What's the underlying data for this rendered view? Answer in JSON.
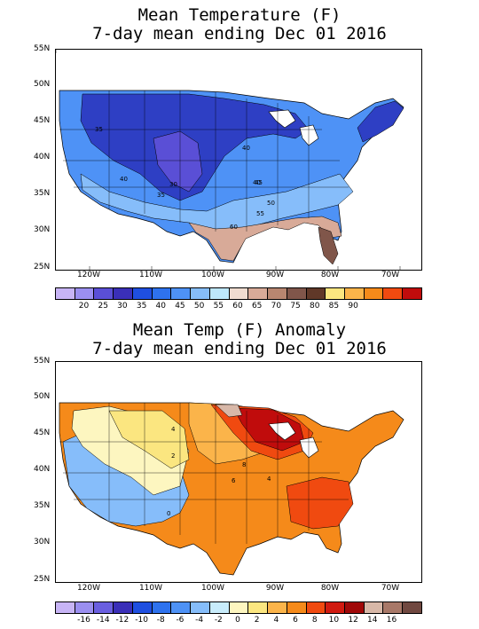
{
  "temperature_map": {
    "title_line1": "Mean Temperature (F)",
    "title_line2": "7-day mean ending Dec 01 2016",
    "lat_labels": [
      "55N",
      "50N",
      "45N",
      "40N",
      "35N",
      "30N",
      "25N"
    ],
    "lon_labels": [
      "120W",
      "110W",
      "100W",
      "90W",
      "80W",
      "70W"
    ],
    "contour_labels": [
      "35",
      "40",
      "40",
      "35",
      "30",
      "40",
      "45",
      "50",
      "55",
      "60"
    ],
    "legend_labels": [
      "20",
      "25",
      "30",
      "35",
      "40",
      "45",
      "50",
      "55",
      "60",
      "65",
      "70",
      "75",
      "80",
      "85",
      "90"
    ],
    "legend_colors": [
      "#c7b4f5",
      "#9b8ff0",
      "#5a4fd6",
      "#3a2fb8",
      "#1f4fe0",
      "#2e72ee",
      "#4e92f6",
      "#86bdfa",
      "#bde7fb",
      "#f0dcd0",
      "#d8aa98",
      "#b88670",
      "#80564a",
      "#603828",
      "#fbe680",
      "#fbb44a",
      "#f58a1a",
      "#f04a10",
      "#c00c0c"
    ]
  },
  "anomaly_map": {
    "title_line1": "Mean Temp (F) Anomaly",
    "title_line2": "7-day mean ending Dec 01 2016",
    "lat_labels": [
      "55N",
      "50N",
      "45N",
      "40N",
      "35N",
      "30N",
      "25N"
    ],
    "lon_labels": [
      "120W",
      "110W",
      "100W",
      "90W",
      "80W",
      "70W"
    ],
    "contour_labels": [
      "4",
      "2",
      "8",
      "6",
      "4",
      "0"
    ],
    "legend_labels": [
      "-16",
      "-14",
      "-12",
      "-10",
      "-8",
      "-6",
      "-4",
      "-2",
      "0",
      "2",
      "4",
      "6",
      "8",
      "10",
      "12",
      "14",
      "16"
    ],
    "legend_colors": [
      "#c7b4f5",
      "#9b8ff0",
      "#6a5fe0",
      "#3a2fb8",
      "#1f4fe0",
      "#2e72ee",
      "#4e92f6",
      "#86bdfa",
      "#c8ecfb",
      "#fdf6c0",
      "#fbe680",
      "#fbb44a",
      "#f58a1a",
      "#f04a10",
      "#d01a10",
      "#a00808",
      "#d8b8a8",
      "#a87868",
      "#704840"
    ]
  }
}
